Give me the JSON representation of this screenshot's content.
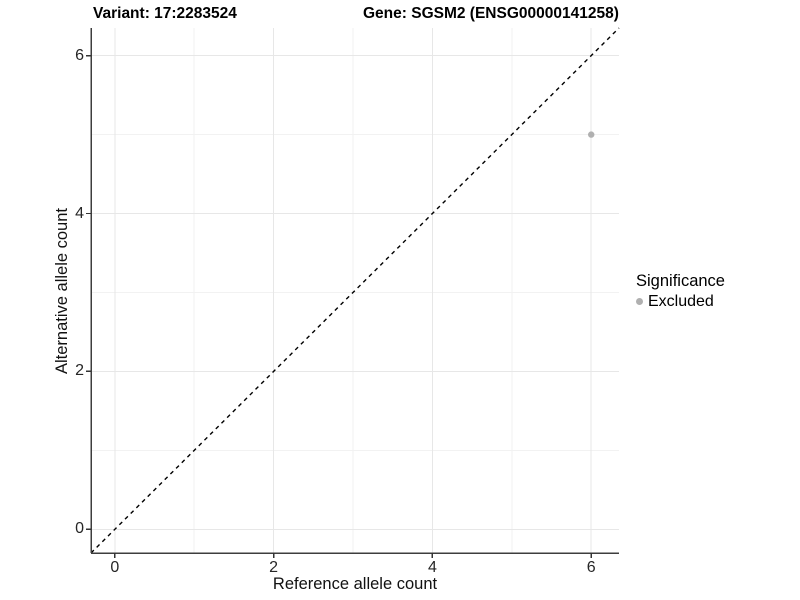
{
  "titles": {
    "variant": "Variant: 17:2283524",
    "gene": "Gene: SGSM2 (ENSG00000141258)"
  },
  "axes": {
    "x": {
      "label": "Reference allele count",
      "ticks": [
        0,
        2,
        4,
        6
      ]
    },
    "y": {
      "label": "Alternative allele count",
      "ticks": [
        0,
        2,
        4,
        6
      ]
    }
  },
  "legend": {
    "title": "Significance",
    "items": [
      {
        "label": "Excluded",
        "color": "#b0b0b0",
        "marker": "circle-icon"
      }
    ]
  },
  "chart_data": {
    "type": "scatter",
    "title": "Variant: 17:2283524 | Gene: SGSM2 (ENSG00000141258)",
    "xlabel": "Reference allele count",
    "ylabel": "Alternative allele count",
    "xlim": [
      -0.3,
      6.35
    ],
    "ylim": [
      -0.3,
      6.35
    ],
    "x_major_ticks": [
      0,
      2,
      4,
      6
    ],
    "y_major_ticks": [
      0,
      2,
      4,
      6
    ],
    "x_minor_ticks": [
      1,
      3,
      5
    ],
    "y_minor_ticks": [
      1,
      3,
      5
    ],
    "grid": "major+minor",
    "legend_position": "right",
    "series": [
      {
        "name": "Excluded",
        "color": "#b0b0b0",
        "points": [
          {
            "x": 6,
            "y": 5
          }
        ]
      }
    ],
    "reference_line": {
      "slope": 1,
      "intercept": 0,
      "style": "dashed",
      "color": "#000000"
    }
  },
  "colors": {
    "background": "#ffffff",
    "grid_major": "#e7e7e7",
    "grid_minor": "#f2f2f2",
    "axis_line": "#3d3d3d",
    "tick_mark": "#333333",
    "tick_label": "#262626",
    "point": "#b0b0b0"
  }
}
